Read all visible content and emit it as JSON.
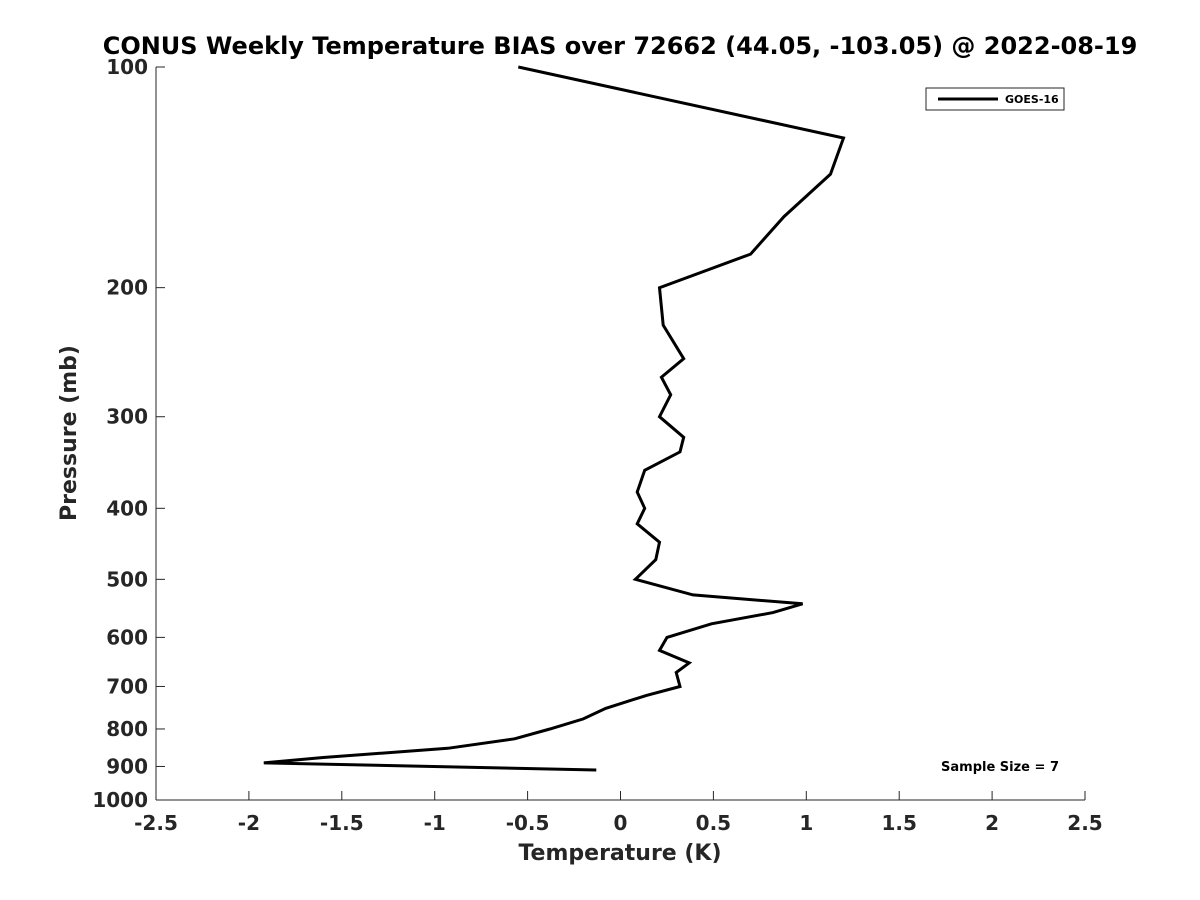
{
  "chart_data": {
    "type": "line",
    "title": "CONUS Weekly Temperature BIAS over 72662 (44.05, -103.05) @ 2022-08-19",
    "xlabel": "Temperature (K)",
    "ylabel": "Pressure (mb)",
    "xlim": [
      -2.5,
      2.5
    ],
    "ylim": [
      1000,
      100
    ],
    "yscale": "log",
    "y_reversed": true,
    "grid": false,
    "legend_position": "top-right",
    "x_ticks": [
      -2.5,
      -2,
      -1.5,
      -1,
      -0.5,
      0,
      0.5,
      1,
      1.5,
      2,
      2.5
    ],
    "x_tick_labels": [
      "-2.5",
      "-2",
      "-1.5",
      "-1",
      "-0.5",
      "0",
      "0.5",
      "1",
      "1.5",
      "2",
      "2.5"
    ],
    "y_ticks": [
      100,
      200,
      300,
      400,
      500,
      600,
      700,
      800,
      900,
      1000
    ],
    "y_tick_labels": [
      "100",
      "200",
      "300",
      "400",
      "500",
      "600",
      "700",
      "800",
      "900",
      "1000"
    ],
    "series": [
      {
        "name": "GOES-16",
        "color": "#000000",
        "points": [
          {
            "x": -0.55,
            "y": 100
          },
          {
            "x": 1.2,
            "y": 125
          },
          {
            "x": 1.13,
            "y": 140
          },
          {
            "x": 0.88,
            "y": 160
          },
          {
            "x": 0.7,
            "y": 180
          },
          {
            "x": 0.21,
            "y": 200
          },
          {
            "x": 0.23,
            "y": 225
          },
          {
            "x": 0.34,
            "y": 250
          },
          {
            "x": 0.22,
            "y": 265
          },
          {
            "x": 0.27,
            "y": 280
          },
          {
            "x": 0.21,
            "y": 300
          },
          {
            "x": 0.34,
            "y": 320
          },
          {
            "x": 0.32,
            "y": 335
          },
          {
            "x": 0.13,
            "y": 355
          },
          {
            "x": 0.09,
            "y": 380
          },
          {
            "x": 0.13,
            "y": 400
          },
          {
            "x": 0.09,
            "y": 420
          },
          {
            "x": 0.21,
            "y": 445
          },
          {
            "x": 0.19,
            "y": 470
          },
          {
            "x": 0.08,
            "y": 500
          },
          {
            "x": 0.39,
            "y": 525
          },
          {
            "x": 0.98,
            "y": 540
          },
          {
            "x": 0.82,
            "y": 555
          },
          {
            "x": 0.49,
            "y": 575
          },
          {
            "x": 0.25,
            "y": 600
          },
          {
            "x": 0.21,
            "y": 625
          },
          {
            "x": 0.37,
            "y": 650
          },
          {
            "x": 0.3,
            "y": 670
          },
          {
            "x": 0.32,
            "y": 700
          },
          {
            "x": 0.14,
            "y": 720
          },
          {
            "x": -0.08,
            "y": 750
          },
          {
            "x": -0.2,
            "y": 775
          },
          {
            "x": -0.38,
            "y": 800
          },
          {
            "x": -0.57,
            "y": 825
          },
          {
            "x": -0.93,
            "y": 850
          },
          {
            "x": -1.6,
            "y": 875
          },
          {
            "x": -1.92,
            "y": 890
          },
          {
            "x": -0.13,
            "y": 910
          }
        ]
      }
    ],
    "annotations": [
      {
        "text": "Sample Size = 7",
        "position": "bottom-right"
      }
    ]
  }
}
